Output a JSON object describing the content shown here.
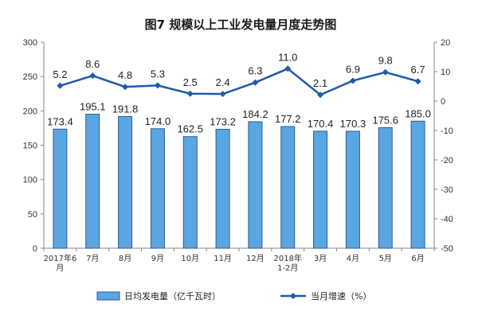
{
  "chart_data": {
    "type": "bar",
    "title": "图7  规模以上工业发电量月度走势图",
    "categories": [
      "2017年6月",
      "7月",
      "8月",
      "9月",
      "10月",
      "11月",
      "12月",
      "2018年 1-2月",
      "3月",
      "4月",
      "5月",
      "6月"
    ],
    "series": [
      {
        "name": "日均发电量（亿千瓦时）",
        "type": "bar",
        "axis": "left",
        "color": "#5aa6e2",
        "values": [
          173.4,
          195.1,
          191.8,
          174.0,
          162.5,
          173.2,
          184.2,
          177.2,
          170.4,
          170.3,
          175.6,
          185.0
        ],
        "labels": [
          "173.4",
          "195.1",
          "191.8",
          "174.0",
          "162.5",
          "173.2",
          "184.2",
          "177.2",
          "170.4",
          "170.3",
          "175.6",
          "185.0"
        ]
      },
      {
        "name": "当月增速（%）",
        "type": "line",
        "axis": "right",
        "color": "#1f5aa8",
        "values": [
          5.2,
          8.6,
          4.8,
          5.3,
          2.5,
          2.4,
          6.3,
          11.0,
          2.1,
          6.9,
          9.8,
          6.7
        ],
        "labels": [
          "5.2",
          "8.6",
          "4.8",
          "5.3",
          "2.5",
          "2.4",
          "6.3",
          "11.0",
          "2.1",
          "6.9",
          "9.8",
          "6.7"
        ]
      }
    ],
    "y_left": {
      "min": 0,
      "max": 300,
      "ticks": [
        "0",
        "50",
        "100",
        "150",
        "200",
        "250",
        "300"
      ]
    },
    "y_right": {
      "min": -50,
      "max": 20,
      "ticks": [
        "-50",
        "-40",
        "-30",
        "-20",
        "-10",
        "0",
        "10",
        "20"
      ]
    },
    "grid": false,
    "legend_position": "bottom"
  }
}
